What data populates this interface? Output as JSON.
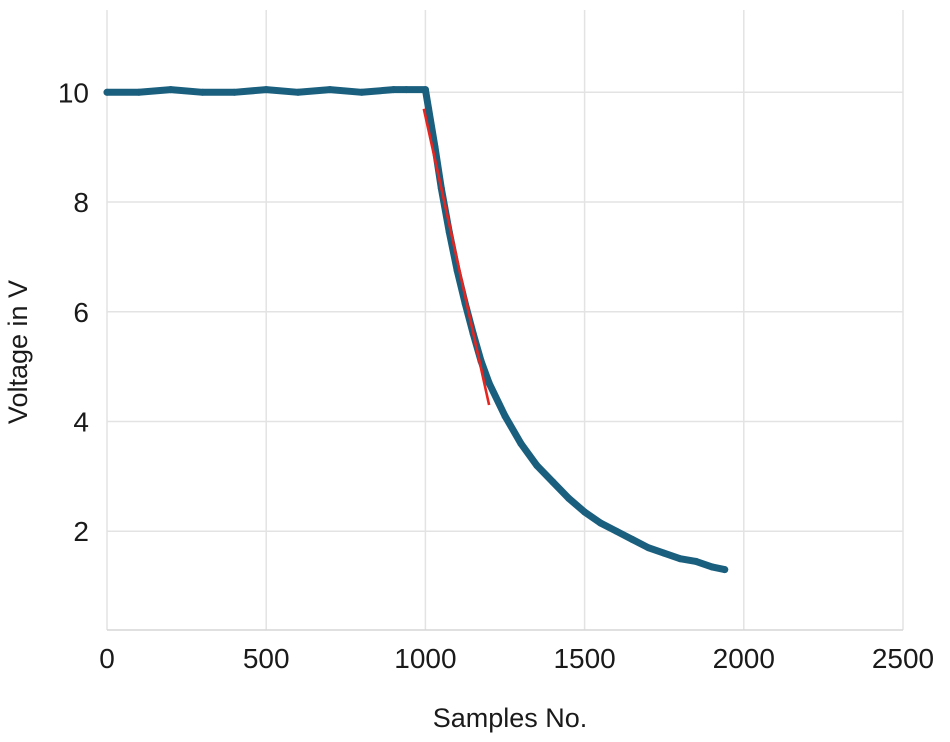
{
  "chart_data": {
    "type": "scatter",
    "title": "",
    "xlabel": "Samples No.",
    "ylabel": "Voltage in V",
    "xlim": [
      0,
      2500
    ],
    "ylim": [
      0.2,
      11.5
    ],
    "xticks": [
      "0",
      "500",
      "1000",
      "1500",
      "2000",
      "2500"
    ],
    "yticks": [
      "2",
      "4",
      "6",
      "8",
      "10"
    ],
    "grid": true,
    "legend": "none",
    "series": [
      {
        "kind": "measured-samples",
        "color": "#1b5f7e",
        "x": [
          0,
          100,
          200,
          300,
          400,
          500,
          600,
          700,
          800,
          900,
          940,
          1000,
          1010,
          1030,
          1050,
          1075,
          1100,
          1125,
          1150,
          1175,
          1200,
          1250,
          1300,
          1350,
          1400,
          1450,
          1500,
          1550,
          1600,
          1650,
          1700,
          1750,
          1800,
          1850,
          1900,
          1940
        ],
        "y": [
          10.0,
          10.0,
          10.05,
          10.0,
          10.0,
          10.05,
          10.0,
          10.05,
          10.0,
          10.05,
          10.05,
          10.05,
          9.7,
          9.0,
          8.25,
          7.45,
          6.75,
          6.15,
          5.6,
          5.1,
          4.7,
          4.1,
          3.6,
          3.2,
          2.9,
          2.6,
          2.35,
          2.15,
          2.0,
          1.85,
          1.7,
          1.6,
          1.5,
          1.45,
          1.35,
          1.3
        ]
      },
      {
        "kind": "tangent-line",
        "color": "#e8241e",
        "x": [
          995,
          1200
        ],
        "y": [
          9.7,
          4.3
        ]
      }
    ]
  }
}
